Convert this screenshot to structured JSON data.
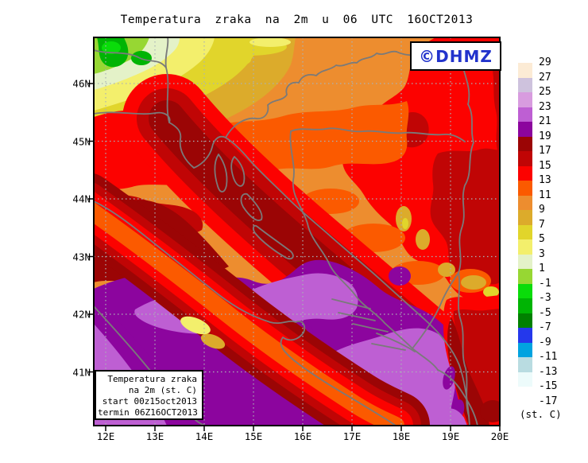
{
  "title": "Temperatura zraka na 2m u 06 UTC 16OCT2013",
  "watermark": "©DHMZ",
  "info_box": {
    "lines": [
      "Temperatura zraka",
      "na 2m (st. C)",
      "start 00z15oct2013",
      "termin 06Z16OCT2013"
    ]
  },
  "axes": {
    "lat": [
      "46N",
      "45N",
      "44N",
      "43N",
      "42N",
      "41N"
    ],
    "lon": [
      "12E",
      "13E",
      "14E",
      "15E",
      "16E",
      "17E",
      "18E",
      "19E",
      "20E"
    ]
  },
  "legend": {
    "unit": "(st. C)",
    "levels": [
      "29",
      "27",
      "25",
      "23",
      "21",
      "19",
      "17",
      "15",
      "13",
      "11",
      "9",
      "7",
      "5",
      "3",
      "1",
      "-1",
      "-3",
      "-5",
      "-7",
      "-9",
      "-11",
      "-13",
      "-15",
      "-17"
    ],
    "colors": [
      "#FCEBD5",
      "#CEC2DD",
      "#D89CDF",
      "#BE5FD3",
      "#8C059E",
      "#9B0505",
      "#C00505",
      "#FC0200",
      "#FB5A00",
      "#ED8D2F",
      "#DCAB2B",
      "#E1D52B",
      "#F3EF6C",
      "#E4F2C8",
      "#97D733",
      "#0ADC0A",
      "#00B404",
      "#008000",
      "#2438EC",
      "#00A3E0",
      "#B9DCE1",
      "#EDFBFB",
      "#FFFFFF"
    ]
  },
  "palette": {
    "t23": "#BE5FD3",
    "t21": "#8C059E",
    "t19": "#9B0505",
    "t17": "#C00505",
    "t15": "#FC0200",
    "t13": "#FB5A00",
    "t11": "#ED8D2F",
    "t9": "#DCAB2B",
    "t7": "#E1D52B",
    "t5": "#F3EF6C",
    "t3": "#E4F2C8",
    "t1": "#97D733",
    "tm1": "#0ADC0A",
    "tm3": "#00B404",
    "border": "#7A7A7A",
    "grid": "#AAB2B6",
    "frame": "#000000",
    "dhmz_blue": "#2233CC"
  }
}
